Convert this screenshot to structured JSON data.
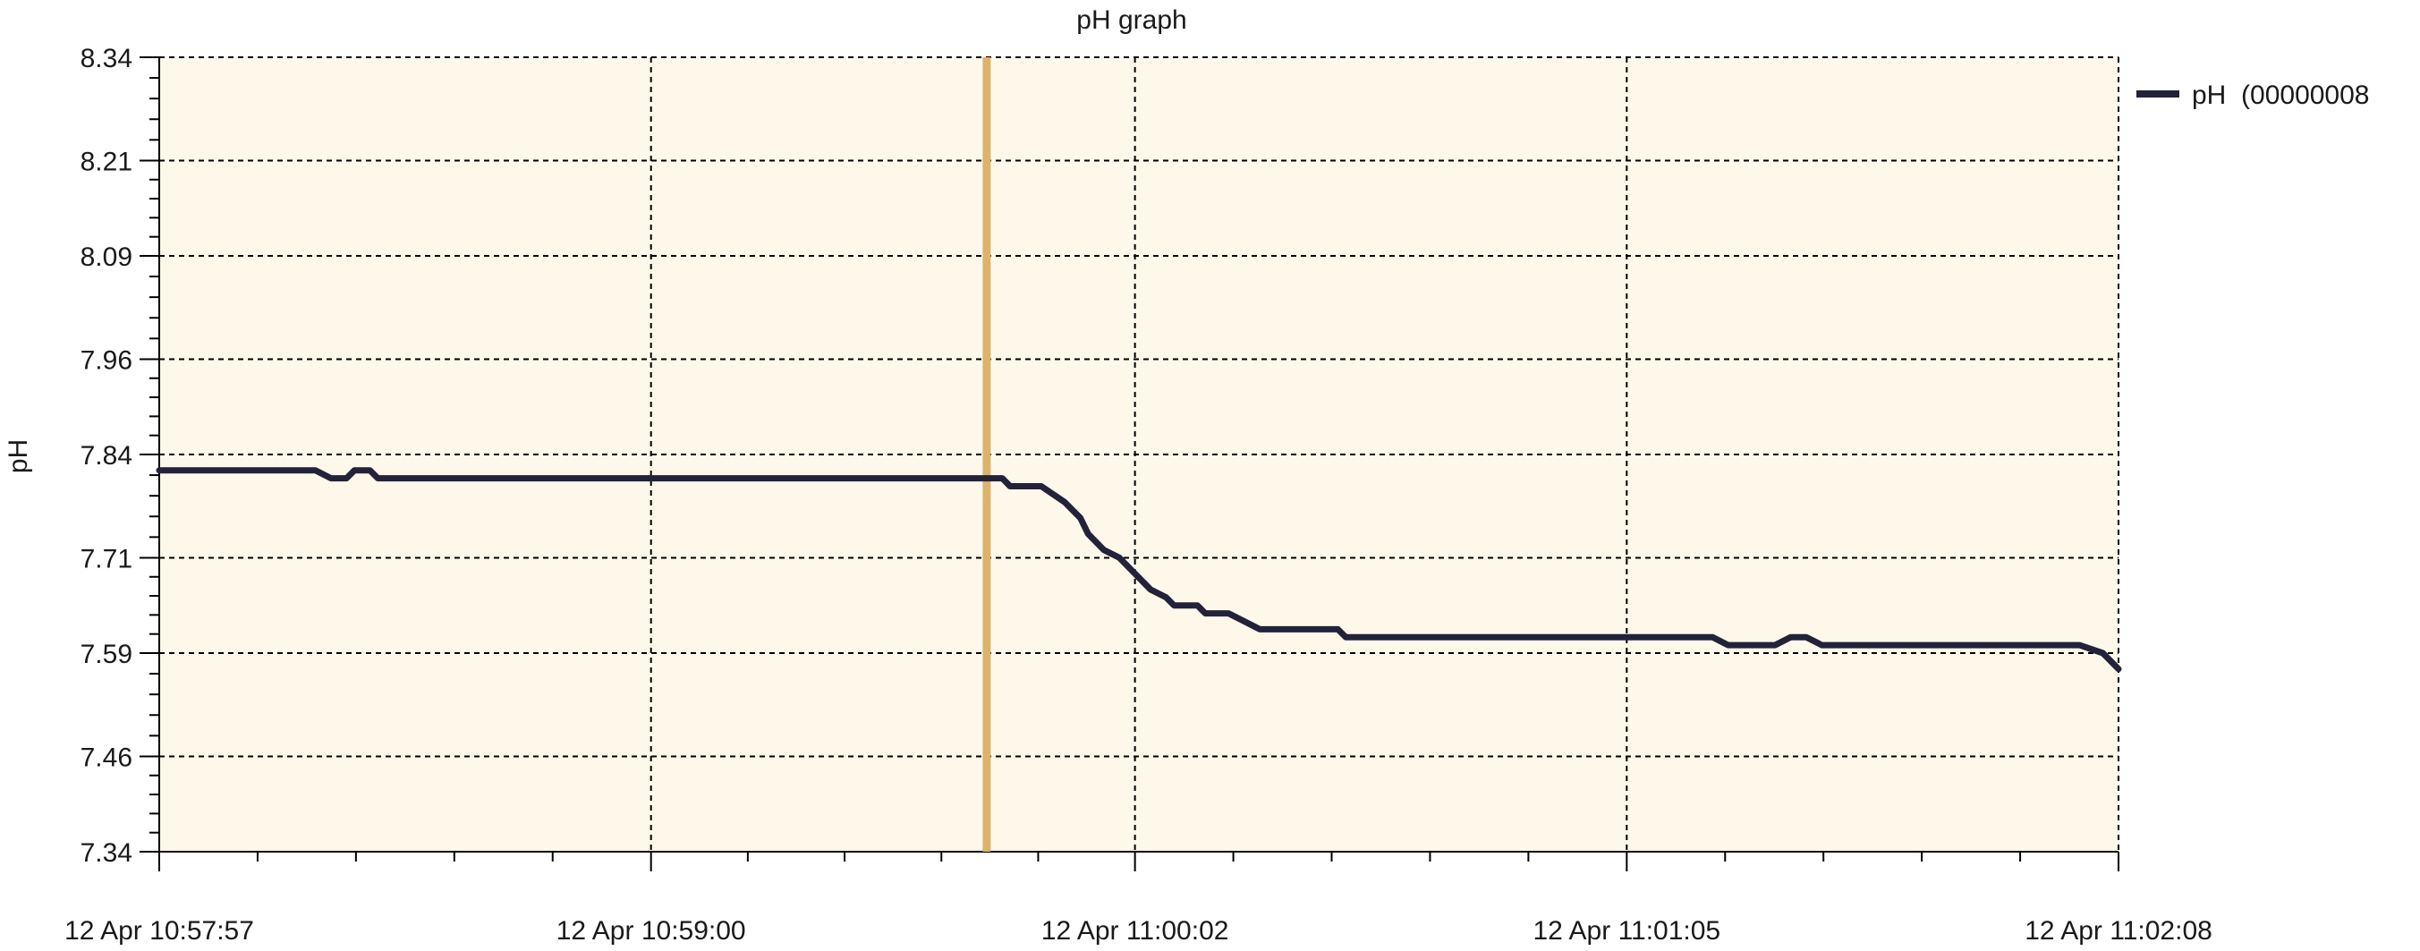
{
  "chart_data": {
    "type": "line",
    "title": "pH graph",
    "ylabel": "pH",
    "xlabel": "",
    "ylim": [
      7.34,
      8.34
    ],
    "yticks": [
      "7.34",
      "7.46",
      "7.59",
      "7.71",
      "7.84",
      "7.96",
      "8.09",
      "8.21",
      "8.34"
    ],
    "xticks": [
      "12 Apr 10:57:57",
      "12 Apr 10:59:00",
      "12 Apr 11:00:02",
      "12 Apr 11:01:05",
      "12 Apr 11:02:08"
    ],
    "grid": true,
    "legend_position": "right",
    "marker_time": "12 Apr 10:59:43",
    "series": [
      {
        "name": "pH  (00000008",
        "color": "#22223a",
        "points": [
          [
            "12 Apr 10:57:57",
            7.82
          ],
          [
            "12 Apr 10:58:17",
            7.82
          ],
          [
            "12 Apr 10:58:19",
            7.81
          ],
          [
            "12 Apr 10:58:21",
            7.81
          ],
          [
            "12 Apr 10:58:22",
            7.82
          ],
          [
            "12 Apr 10:58:24",
            7.82
          ],
          [
            "12 Apr 10:58:25",
            7.81
          ],
          [
            "12 Apr 10:59:45",
            7.81
          ],
          [
            "12 Apr 10:59:46",
            7.8
          ],
          [
            "12 Apr 10:59:50",
            7.8
          ],
          [
            "12 Apr 10:59:53",
            7.78
          ],
          [
            "12 Apr 10:59:55",
            7.76
          ],
          [
            "12 Apr 10:59:56",
            7.74
          ],
          [
            "12 Apr 10:59:58",
            7.72
          ],
          [
            "12 Apr 11:00:00",
            7.71
          ],
          [
            "12 Apr 11:00:02",
            7.69
          ],
          [
            "12 Apr 11:00:04",
            7.67
          ],
          [
            "12 Apr 11:00:06",
            7.66
          ],
          [
            "12 Apr 11:00:07",
            7.65
          ],
          [
            "12 Apr 11:00:10",
            7.65
          ],
          [
            "12 Apr 11:00:11",
            7.64
          ],
          [
            "12 Apr 11:00:14",
            7.64
          ],
          [
            "12 Apr 11:00:16",
            7.63
          ],
          [
            "12 Apr 11:00:18",
            7.62
          ],
          [
            "12 Apr 11:00:28",
            7.62
          ],
          [
            "12 Apr 11:00:29",
            7.61
          ],
          [
            "12 Apr 11:01:16",
            7.61
          ],
          [
            "12 Apr 11:01:18",
            7.6
          ],
          [
            "12 Apr 11:01:24",
            7.6
          ],
          [
            "12 Apr 11:01:26",
            7.61
          ],
          [
            "12 Apr 11:01:28",
            7.61
          ],
          [
            "12 Apr 11:01:30",
            7.6
          ],
          [
            "12 Apr 11:02:03",
            7.6
          ],
          [
            "12 Apr 11:02:06",
            7.59
          ],
          [
            "12 Apr 11:02:08",
            7.57
          ]
        ]
      }
    ]
  }
}
